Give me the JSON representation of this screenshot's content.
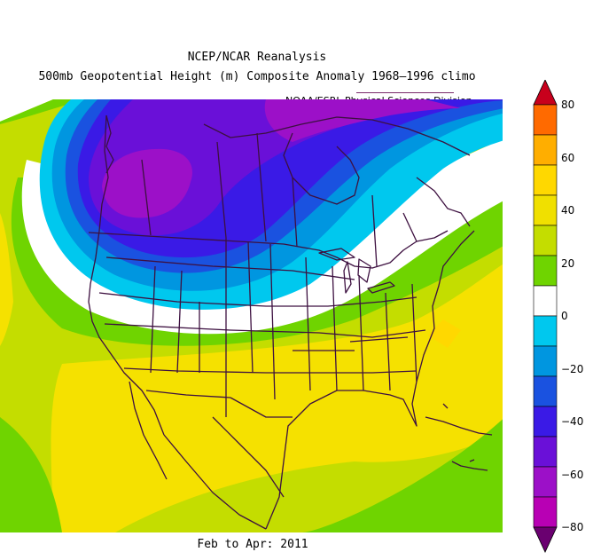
{
  "title": {
    "line1": "NCEP/NCAR Reanalysis",
    "line2": "500mb Geopotential Height (m) Composite Anomaly 1968–1996 climo",
    "credit": "NOAA/ESRL Physical Sciences Division"
  },
  "footer": {
    "period": "Feb to Apr: 2011"
  },
  "colorbar": {
    "labels": [
      "80",
      "60",
      "40",
      "20",
      "0",
      "−20",
      "−40",
      "−60",
      "−80"
    ],
    "levels": [
      {
        "color": "#c8001c"
      },
      {
        "color": "#ff6a00"
      },
      {
        "color": "#ffae00"
      },
      {
        "color": "#ffd800"
      },
      {
        "color": "#f0e000"
      },
      {
        "color": "#c4dd00"
      },
      {
        "color": "#6fd400"
      },
      {
        "color": "#ffffff"
      },
      {
        "color": "#00c8ee"
      },
      {
        "color": "#0096e0"
      },
      {
        "color": "#1a52e0"
      },
      {
        "color": "#3a1ae6"
      },
      {
        "color": "#6a10d8"
      },
      {
        "color": "#9c10c8"
      },
      {
        "color": "#b800b4"
      },
      {
        "color": "#6a0070"
      }
    ]
  },
  "map": {
    "colors": {
      "green": "#6fd400",
      "lime": "#c4dd00",
      "yellow": "#f5e100",
      "gold": "#ffd800",
      "white": "#ffffff",
      "cyan": "#00c8ee",
      "blue": "#0096e0",
      "darkblue": "#1a52e0",
      "indigo": "#3a1ae6",
      "purple": "#6a10d8",
      "violet": "#9c10c8",
      "magenta": "#b800b4",
      "boundary": "#3d1040"
    }
  }
}
